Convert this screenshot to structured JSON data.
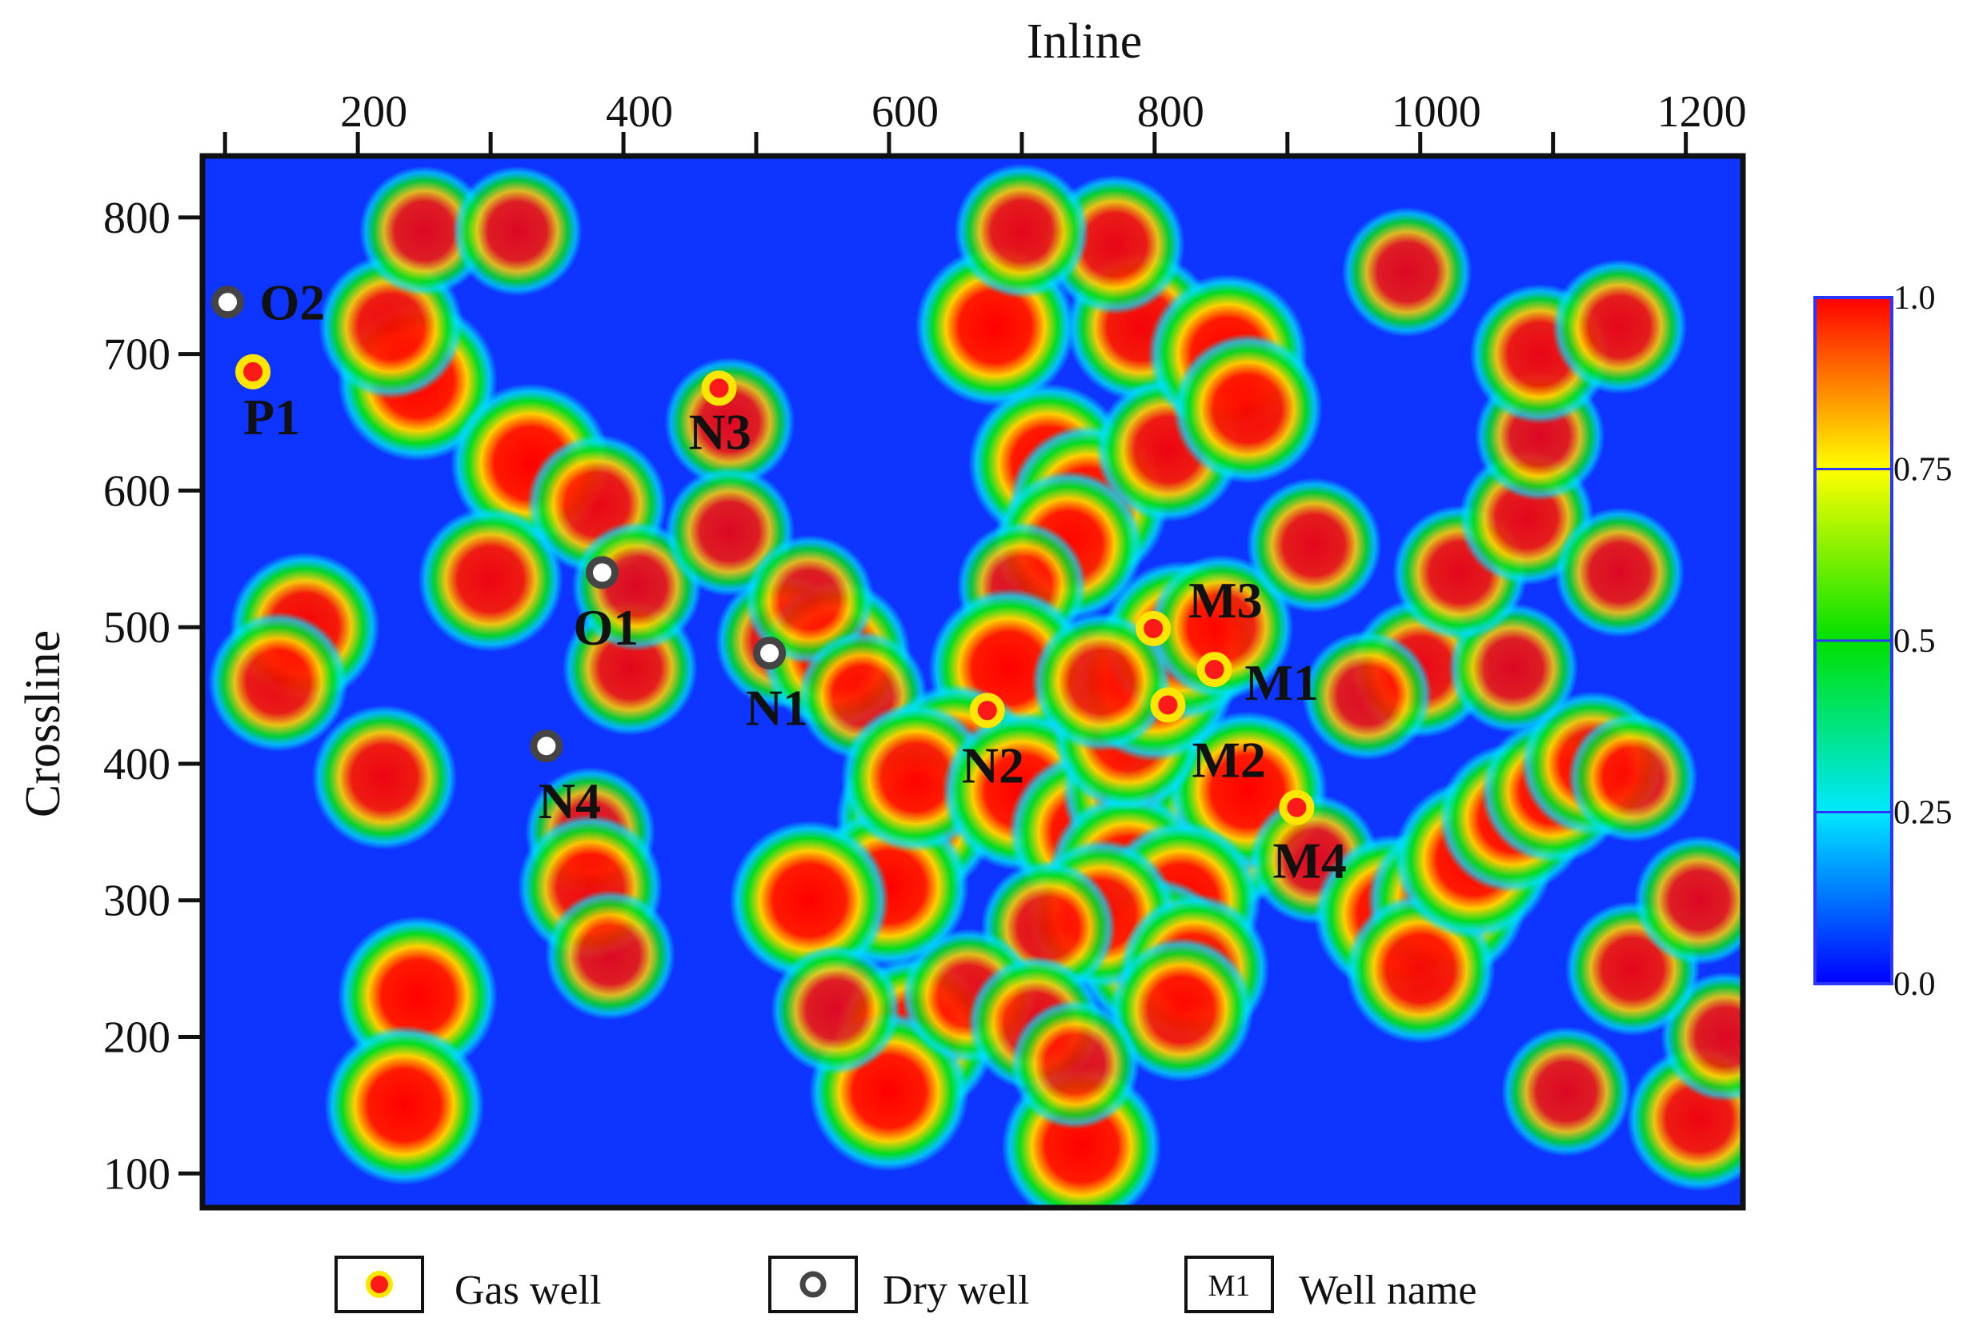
{
  "chart_data": {
    "type": "heatmap",
    "xlabel": "Inline",
    "ylabel": "Crossline",
    "xlim": [
      83,
      1243
    ],
    "ylim": [
      75,
      845
    ],
    "x_ticks": [
      200,
      400,
      600,
      800,
      1000,
      1200
    ],
    "y_ticks": [
      800,
      700,
      600,
      500,
      400,
      300,
      200,
      100
    ],
    "colorbar": {
      "min": 0.0,
      "max": 1.0,
      "ticks": [
        "1.0",
        "0.75",
        "0.5",
        "0.25",
        "0.0"
      ],
      "colors": [
        "#ff0000",
        "#ffff00",
        "#00e000",
        "#00e8ff",
        "#0000ff"
      ]
    },
    "hotspots": [
      {
        "x": 245,
        "y": 680,
        "v": 1.0
      },
      {
        "x": 225,
        "y": 720,
        "v": 0.85
      },
      {
        "x": 330,
        "y": 620,
        "v": 1.0
      },
      {
        "x": 300,
        "y": 535,
        "v": 0.85
      },
      {
        "x": 160,
        "y": 500,
        "v": 0.9
      },
      {
        "x": 140,
        "y": 460,
        "v": 0.8
      },
      {
        "x": 380,
        "y": 590,
        "v": 0.8
      },
      {
        "x": 405,
        "y": 470,
        "v": 0.75
      },
      {
        "x": 410,
        "y": 530,
        "v": 0.7
      },
      {
        "x": 480,
        "y": 650,
        "v": 0.7
      },
      {
        "x": 480,
        "y": 570,
        "v": 0.7
      },
      {
        "x": 520,
        "y": 490,
        "v": 0.75
      },
      {
        "x": 560,
        "y": 480,
        "v": 0.9
      },
      {
        "x": 540,
        "y": 520,
        "v": 0.7
      },
      {
        "x": 375,
        "y": 350,
        "v": 0.7
      },
      {
        "x": 375,
        "y": 310,
        "v": 0.85
      },
      {
        "x": 390,
        "y": 260,
        "v": 0.7
      },
      {
        "x": 220,
        "y": 390,
        "v": 0.85
      },
      {
        "x": 245,
        "y": 230,
        "v": 1.0
      },
      {
        "x": 235,
        "y": 150,
        "v": 1.0
      },
      {
        "x": 250,
        "y": 790,
        "v": 0.7
      },
      {
        "x": 320,
        "y": 790,
        "v": 0.7
      },
      {
        "x": 580,
        "y": 450,
        "v": 0.7
      },
      {
        "x": 680,
        "y": 720,
        "v": 1.0
      },
      {
        "x": 720,
        "y": 620,
        "v": 1.0
      },
      {
        "x": 750,
        "y": 590,
        "v": 1.0
      },
      {
        "x": 735,
        "y": 560,
        "v": 0.9
      },
      {
        "x": 700,
        "y": 530,
        "v": 0.7
      },
      {
        "x": 790,
        "y": 720,
        "v": 0.9
      },
      {
        "x": 810,
        "y": 630,
        "v": 0.85
      },
      {
        "x": 770,
        "y": 780,
        "v": 0.8
      },
      {
        "x": 700,
        "y": 790,
        "v": 0.75
      },
      {
        "x": 855,
        "y": 700,
        "v": 1.0
      },
      {
        "x": 870,
        "y": 660,
        "v": 0.9
      },
      {
        "x": 700,
        "y": 440,
        "v": 1.0
      },
      {
        "x": 690,
        "y": 470,
        "v": 1.0
      },
      {
        "x": 650,
        "y": 400,
        "v": 1.0
      },
      {
        "x": 620,
        "y": 360,
        "v": 1.0
      },
      {
        "x": 600,
        "y": 310,
        "v": 1.0
      },
      {
        "x": 540,
        "y": 300,
        "v": 1.0
      },
      {
        "x": 620,
        "y": 390,
        "v": 0.9
      },
      {
        "x": 700,
        "y": 380,
        "v": 1.0
      },
      {
        "x": 750,
        "y": 350,
        "v": 1.0
      },
      {
        "x": 790,
        "y": 380,
        "v": 1.0
      },
      {
        "x": 820,
        "y": 360,
        "v": 1.0
      },
      {
        "x": 850,
        "y": 350,
        "v": 1.0
      },
      {
        "x": 870,
        "y": 380,
        "v": 1.0
      },
      {
        "x": 780,
        "y": 320,
        "v": 1.0
      },
      {
        "x": 820,
        "y": 300,
        "v": 1.0
      },
      {
        "x": 800,
        "y": 260,
        "v": 0.95
      },
      {
        "x": 760,
        "y": 290,
        "v": 0.9
      },
      {
        "x": 830,
        "y": 250,
        "v": 0.9
      },
      {
        "x": 820,
        "y": 220,
        "v": 0.85
      },
      {
        "x": 720,
        "y": 280,
        "v": 0.75
      },
      {
        "x": 780,
        "y": 420,
        "v": 0.9
      },
      {
        "x": 800,
        "y": 460,
        "v": 1.0
      },
      {
        "x": 820,
        "y": 490,
        "v": 1.0
      },
      {
        "x": 850,
        "y": 500,
        "v": 0.85
      },
      {
        "x": 760,
        "y": 460,
        "v": 0.8
      },
      {
        "x": 620,
        "y": 200,
        "v": 1.0
      },
      {
        "x": 600,
        "y": 160,
        "v": 1.0
      },
      {
        "x": 660,
        "y": 230,
        "v": 0.75
      },
      {
        "x": 710,
        "y": 210,
        "v": 0.75
      },
      {
        "x": 745,
        "y": 120,
        "v": 1.0
      },
      {
        "x": 740,
        "y": 180,
        "v": 0.7
      },
      {
        "x": 560,
        "y": 220,
        "v": 0.7
      },
      {
        "x": 920,
        "y": 330,
        "v": 0.7
      },
      {
        "x": 980,
        "y": 290,
        "v": 1.0
      },
      {
        "x": 1020,
        "y": 300,
        "v": 1.0
      },
      {
        "x": 1000,
        "y": 250,
        "v": 0.9
      },
      {
        "x": 1040,
        "y": 330,
        "v": 1.0
      },
      {
        "x": 1070,
        "y": 360,
        "v": 0.9
      },
      {
        "x": 1100,
        "y": 380,
        "v": 0.85
      },
      {
        "x": 1130,
        "y": 400,
        "v": 0.85
      },
      {
        "x": 1160,
        "y": 390,
        "v": 0.7
      },
      {
        "x": 1000,
        "y": 470,
        "v": 0.8
      },
      {
        "x": 960,
        "y": 450,
        "v": 0.7
      },
      {
        "x": 1070,
        "y": 470,
        "v": 0.7
      },
      {
        "x": 1030,
        "y": 540,
        "v": 0.75
      },
      {
        "x": 1080,
        "y": 580,
        "v": 0.75
      },
      {
        "x": 1090,
        "y": 640,
        "v": 0.7
      },
      {
        "x": 1090,
        "y": 700,
        "v": 0.8
      },
      {
        "x": 1150,
        "y": 720,
        "v": 0.75
      },
      {
        "x": 1150,
        "y": 540,
        "v": 0.7
      },
      {
        "x": 990,
        "y": 760,
        "v": 0.7
      },
      {
        "x": 1210,
        "y": 140,
        "v": 0.85
      },
      {
        "x": 1230,
        "y": 200,
        "v": 0.7
      },
      {
        "x": 1160,
        "y": 250,
        "v": 0.75
      },
      {
        "x": 1210,
        "y": 300,
        "v": 0.7
      },
      {
        "x": 1110,
        "y": 160,
        "v": 0.7
      },
      {
        "x": 920,
        "y": 560,
        "v": 0.75
      }
    ],
    "wells": [
      {
        "name": "O2",
        "type": "dry",
        "x": 102,
        "y": 738
      },
      {
        "name": "P1",
        "type": "gas",
        "x": 121,
        "y": 687
      },
      {
        "name": "N3",
        "type": "gas",
        "x": 472,
        "y": 675
      },
      {
        "name": "O1",
        "type": "dry",
        "x": 384,
        "y": 540
      },
      {
        "name": "N1",
        "type": "dry",
        "x": 510,
        "y": 481
      },
      {
        "name": "N2",
        "type": "gas",
        "x": 674,
        "y": 439
      },
      {
        "name": "N4",
        "type": "dry",
        "x": 342,
        "y": 413
      },
      {
        "name": "M3",
        "type": "gas",
        "x": 799,
        "y": 499
      },
      {
        "name": "M1",
        "type": "gas",
        "x": 845,
        "y": 469
      },
      {
        "name": "M2",
        "type": "gas",
        "x": 810,
        "y": 443
      },
      {
        "name": "M4",
        "type": "gas",
        "x": 907,
        "y": 368
      }
    ]
  },
  "legend": {
    "gas_well": "Gas well",
    "dry_well": "Dry well",
    "well_name_symbol": "M1",
    "well_name": "Well name"
  }
}
